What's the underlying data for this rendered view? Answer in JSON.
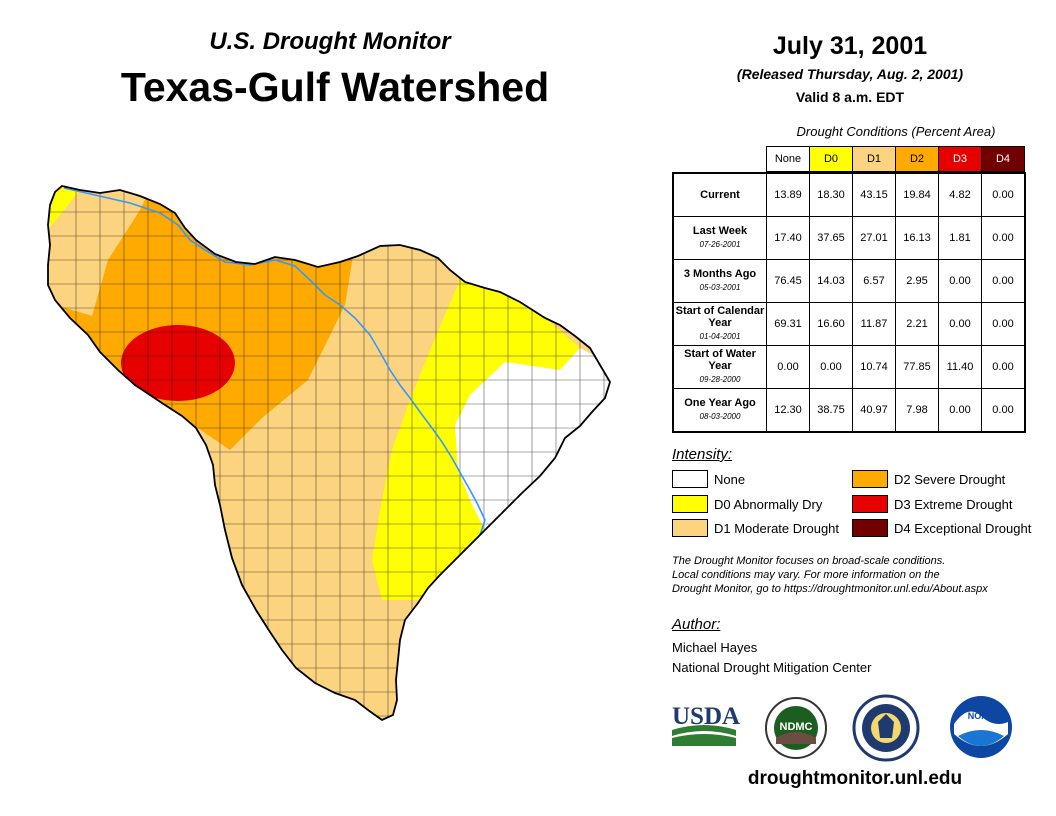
{
  "header": {
    "subtitle": "U.S. Drought Monitor",
    "title": "Texas-Gulf Watershed",
    "date": "July 31, 2001",
    "released": "(Released Thursday, Aug. 2, 2001)",
    "valid": "Valid 8 a.m. EDT"
  },
  "table": {
    "title": "Drought Conditions (Percent Area)",
    "columns": [
      "None",
      "D0",
      "D1",
      "D2",
      "D3",
      "D4"
    ],
    "rows": [
      {
        "label": "Current",
        "date": "",
        "values": [
          "13.89",
          "18.30",
          "43.15",
          "19.84",
          "4.82",
          "0.00"
        ]
      },
      {
        "label": "Last Week",
        "date": "07-26-2001",
        "values": [
          "17.40",
          "37.65",
          "27.01",
          "16.13",
          "1.81",
          "0.00"
        ]
      },
      {
        "label": "3 Months Ago",
        "date": "05-03-2001",
        "values": [
          "76.45",
          "14.03",
          "6.57",
          "2.95",
          "0.00",
          "0.00"
        ]
      },
      {
        "label": "Start of Calendar Year",
        "date": "01-04-2001",
        "values": [
          "69.31",
          "16.60",
          "11.87",
          "2.21",
          "0.00",
          "0.00"
        ]
      },
      {
        "label": "Start of Water Year",
        "date": "09-28-2000",
        "values": [
          "0.00",
          "0.00",
          "10.74",
          "77.85",
          "11.40",
          "0.00"
        ]
      },
      {
        "label": "One Year Ago",
        "date": "08-03-2000",
        "values": [
          "12.30",
          "38.75",
          "40.97",
          "7.98",
          "0.00",
          "0.00"
        ]
      }
    ]
  },
  "legend": {
    "title": "Intensity:",
    "items": [
      {
        "label": "None",
        "color": "#ffffff"
      },
      {
        "label": "D0 Abnormally Dry",
        "color": "#ffff00"
      },
      {
        "label": "D1 Moderate Drought",
        "color": "#fcd37f"
      },
      {
        "label": "D2 Severe Drought",
        "color": "#ffaa00"
      },
      {
        "label": "D3 Extreme Drought",
        "color": "#e60000"
      },
      {
        "label": "D4 Exceptional Drought",
        "color": "#730000"
      }
    ]
  },
  "note": {
    "line1": "The Drought Monitor focuses on broad-scale conditions.",
    "line2": "Local conditions may vary. For more information on the",
    "line3": "Drought Monitor, go to https://droughtmonitor.unl.edu/About.aspx"
  },
  "author": {
    "heading": "Author:",
    "name": "Michael Hayes",
    "org": "National Drought Mitigation Center"
  },
  "logos": {
    "usda": "USDA",
    "ndmc": "NDMC",
    "noaa": "NOAA"
  },
  "website": "droughtmonitor.unl.edu",
  "colors": {
    "none": "#ffffff",
    "d0": "#ffff00",
    "d1": "#fcd37f",
    "d2": "#ffaa00",
    "d3": "#e60000",
    "d4": "#730000",
    "river": "#3399ff"
  }
}
